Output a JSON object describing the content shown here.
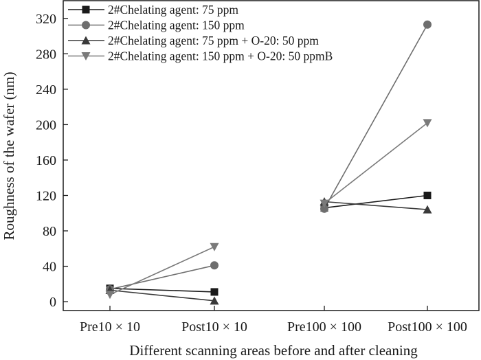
{
  "chart_data": {
    "type": "line",
    "xlabel": "Different scanning areas before and after cleaning",
    "ylabel": "Roughness of the wafer (nm)",
    "ylim": [
      -10,
      340
    ],
    "yticks": [
      0,
      40,
      80,
      120,
      160,
      200,
      240,
      280,
      320
    ],
    "grid": false,
    "legend_position": "top-left",
    "categories": [
      "Pre10 × 10",
      "Post10 × 10",
      "Pre100 × 100",
      "Post100 × 100"
    ],
    "segments": [
      [
        0,
        1
      ],
      [
        2,
        3
      ]
    ],
    "series": [
      {
        "name": "2#Chelating agent: 75 ppm",
        "marker": "square",
        "color": "#1a1a1a",
        "values": [
          15,
          11,
          106,
          120
        ]
      },
      {
        "name": "2#Chelating agent: 150 ppm",
        "marker": "circle",
        "color": "#6e6e6e",
        "values": [
          14,
          41,
          105,
          313
        ]
      },
      {
        "name": "2#Chelating agent: 75 ppm + O-20: 50 ppm",
        "marker": "triangle-up",
        "color": "#3a3a3a",
        "values": [
          13,
          1,
          113,
          104
        ]
      },
      {
        "name": "2#Chelating agent: 150 ppm + O-20: 50 ppmB",
        "marker": "triangle-down",
        "color": "#7a7a7a",
        "values": [
          8,
          62,
          111,
          202
        ]
      }
    ]
  }
}
